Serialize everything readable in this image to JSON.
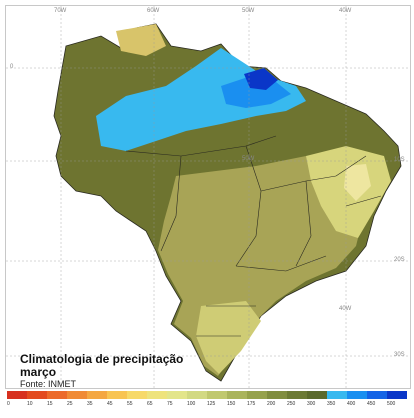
{
  "map": {
    "title_line1": "Climatologia de precipitação",
    "title_line2": "março",
    "source": "Fonte: INMET",
    "grid_labels": {
      "top": [
        "70W",
        "60W",
        "50W",
        "40W"
      ],
      "lat": [
        "0",
        "10S",
        "20S",
        "30S"
      ],
      "lon_inner": [
        "50W",
        "40W"
      ]
    },
    "legend": {
      "ticks": [
        "0",
        "10",
        "15",
        "25",
        "35",
        "45",
        "55",
        "65",
        "75",
        "100",
        "125",
        "150",
        "175",
        "200",
        "250",
        "300",
        "350",
        "400",
        "450",
        "500"
      ],
      "colors": [
        "#d7301f",
        "#e34a1f",
        "#ec6a2a",
        "#f08a35",
        "#f4a742",
        "#f8c453",
        "#f7d969",
        "#eee37c",
        "#e3e58a",
        "#d2d982",
        "#c0c86e",
        "#aab45c",
        "#96a24c",
        "#808d3f",
        "#6c7a34",
        "#5b6a2c",
        "#38b9ef",
        "#1a8ff0",
        "#1463e6",
        "#0a36c8"
      ]
    }
  }
}
